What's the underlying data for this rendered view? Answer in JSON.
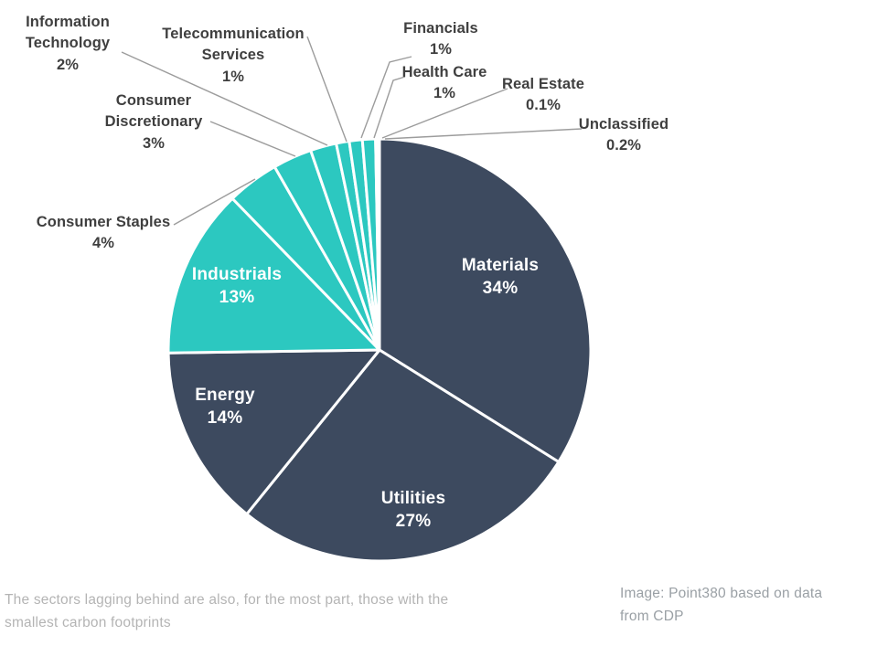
{
  "chart_data": {
    "type": "pie",
    "title": "",
    "unit": "%",
    "start_angle": "12 o'clock",
    "direction": "clockwise",
    "legend_position": "none",
    "grid": false,
    "slices": [
      {
        "label": "Materials",
        "value": 34,
        "display": "34%",
        "color": "#3d4a5f",
        "label_position": "inside"
      },
      {
        "label": "Utilities",
        "value": 27,
        "display": "27%",
        "color": "#3d4a5f",
        "label_position": "inside"
      },
      {
        "label": "Energy",
        "value": 14,
        "display": "14%",
        "color": "#3d4a5f",
        "label_position": "inside"
      },
      {
        "label": "Industrials",
        "value": 13,
        "display": "13%",
        "color": "#2cc8c0",
        "label_position": "inside"
      },
      {
        "label": "Consumer Staples",
        "value": 4,
        "display": "4%",
        "color": "#2cc8c0",
        "label_position": "callout"
      },
      {
        "label": "Consumer Discretionary",
        "value": 3,
        "display": "3%",
        "color": "#2cc8c0",
        "label_position": "callout"
      },
      {
        "label": "Information Technology",
        "value": 2,
        "display": "2%",
        "color": "#2cc8c0",
        "label_position": "callout"
      },
      {
        "label": "Telecommunication Services",
        "value": 1,
        "display": "1%",
        "color": "#2cc8c0",
        "label_position": "callout"
      },
      {
        "label": "Financials",
        "value": 1,
        "display": "1%",
        "color": "#2cc8c0",
        "label_position": "callout"
      },
      {
        "label": "Health Care",
        "value": 1,
        "display": "1%",
        "color": "#2cc8c0",
        "label_position": "callout"
      },
      {
        "label": "Real Estate",
        "value": 0.1,
        "display": "0.1%",
        "color": "#2cc8c0",
        "label_position": "callout"
      },
      {
        "label": "Unclassified",
        "value": 0.2,
        "display": "0.2%",
        "color": "#2cc8c0",
        "label_position": "callout"
      }
    ]
  },
  "inside_labels": {
    "materials": "Materials\n34%",
    "utilities": "Utilities\n27%",
    "energy": "Energy\n14%",
    "industrials": "Industrials\n13%"
  },
  "callouts": {
    "information_technology": "Information\nTechnology\n2%",
    "telecommunication_services": "Telecommunication\nServices\n1%",
    "consumer_discretionary": "Consumer\nDiscretionary\n3%",
    "consumer_staples": "Consumer Staples\n4%",
    "financials": "Financials\n1%",
    "health_care": "Health Care\n1%",
    "real_estate": "Real Estate\n0.1%",
    "unclassified": "Unclassified\n0.2%"
  },
  "captions": {
    "left": "The sectors lagging behind are also, for the most part, those with the\nsmallest carbon footprints",
    "right": "Image: Point380 based on data\nfrom CDP"
  },
  "colors": {
    "navy": "#3d4a5f",
    "teal": "#2cc8c0",
    "slice_border": "#ffffff",
    "leader_line": "#9c9c9c",
    "callout_text": "#3f3f3f",
    "inside_label_text": "#ffffff",
    "caption_left_text": "#b4b4b4",
    "caption_right_text": "#9aa0a5",
    "background": "#ffffff"
  }
}
